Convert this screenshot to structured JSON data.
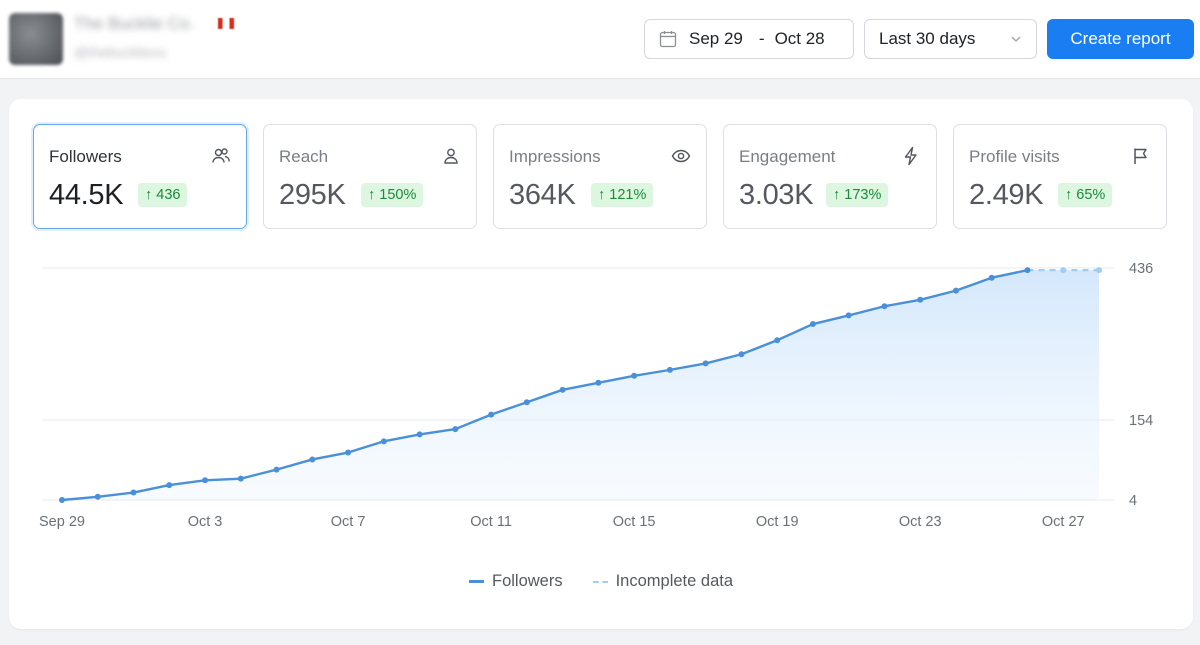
{
  "header": {
    "account_name": "The Bucklie Co.",
    "account_handle": "@thebucklieco",
    "date_start": "Sep 29",
    "date_sep": "-",
    "date_end": "Oct 28",
    "period": "Last 30 days",
    "create_report": "Create report"
  },
  "metrics": [
    {
      "label": "Followers",
      "value": "44.5K",
      "change": "↑ 436",
      "icon": "users-icon",
      "active": true
    },
    {
      "label": "Reach",
      "value": "295K",
      "change": "↑ 150%",
      "icon": "user-icon",
      "active": false
    },
    {
      "label": "Impressions",
      "value": "364K",
      "change": "↑ 121%",
      "icon": "eye-icon",
      "active": false
    },
    {
      "label": "Engagement",
      "value": "3.03K",
      "change": "↑ 173%",
      "icon": "lightning-icon",
      "active": false
    },
    {
      "label": "Profile visits",
      "value": "2.49K",
      "change": "↑ 65%",
      "icon": "flag-icon",
      "active": false
    }
  ],
  "colors": {
    "accent": "#1a7ef2",
    "line": "#4a90d9",
    "incomplete": "#9fcdf3",
    "badge_bg": "#dcf6df",
    "badge_text": "#1d8a3a"
  },
  "chart_data": {
    "type": "area",
    "x": [
      "Sep 29",
      "Sep 30",
      "Oct 1",
      "Oct 2",
      "Oct 3",
      "Oct 4",
      "Oct 5",
      "Oct 6",
      "Oct 7",
      "Oct 8",
      "Oct 9",
      "Oct 10",
      "Oct 11",
      "Oct 12",
      "Oct 13",
      "Oct 14",
      "Oct 15",
      "Oct 16",
      "Oct 17",
      "Oct 18",
      "Oct 19",
      "Oct 20",
      "Oct 21",
      "Oct 22",
      "Oct 23",
      "Oct 24",
      "Oct 25",
      "Oct 26",
      "Oct 27",
      "Oct 28"
    ],
    "x_tick_labels": [
      "Sep 29",
      "Oct 3",
      "Oct 7",
      "Oct 11",
      "Oct 15",
      "Oct 19",
      "Oct 23",
      "Oct 27"
    ],
    "x_tick_index": [
      0,
      4,
      8,
      12,
      16,
      20,
      24,
      28
    ],
    "series": [
      {
        "name": "Followers",
        "values": [
          4,
          10,
          18,
          32,
          41,
          44,
          61,
          80,
          93,
          114,
          127,
          137,
          164,
          187,
          210,
          223,
          236,
          247,
          259,
          276,
          302,
          332,
          348,
          365,
          377,
          394,
          418,
          432,
          null,
          null
        ]
      },
      {
        "name": "Incomplete data",
        "values": [
          null,
          null,
          null,
          null,
          null,
          null,
          null,
          null,
          null,
          null,
          null,
          null,
          null,
          null,
          null,
          null,
          null,
          null,
          null,
          null,
          null,
          null,
          null,
          null,
          null,
          null,
          null,
          432,
          432,
          432
        ]
      }
    ],
    "y_ticks": [
      4,
      154,
      436
    ],
    "ylim": [
      4,
      436
    ],
    "legend": "bottom-center",
    "grid": true
  }
}
